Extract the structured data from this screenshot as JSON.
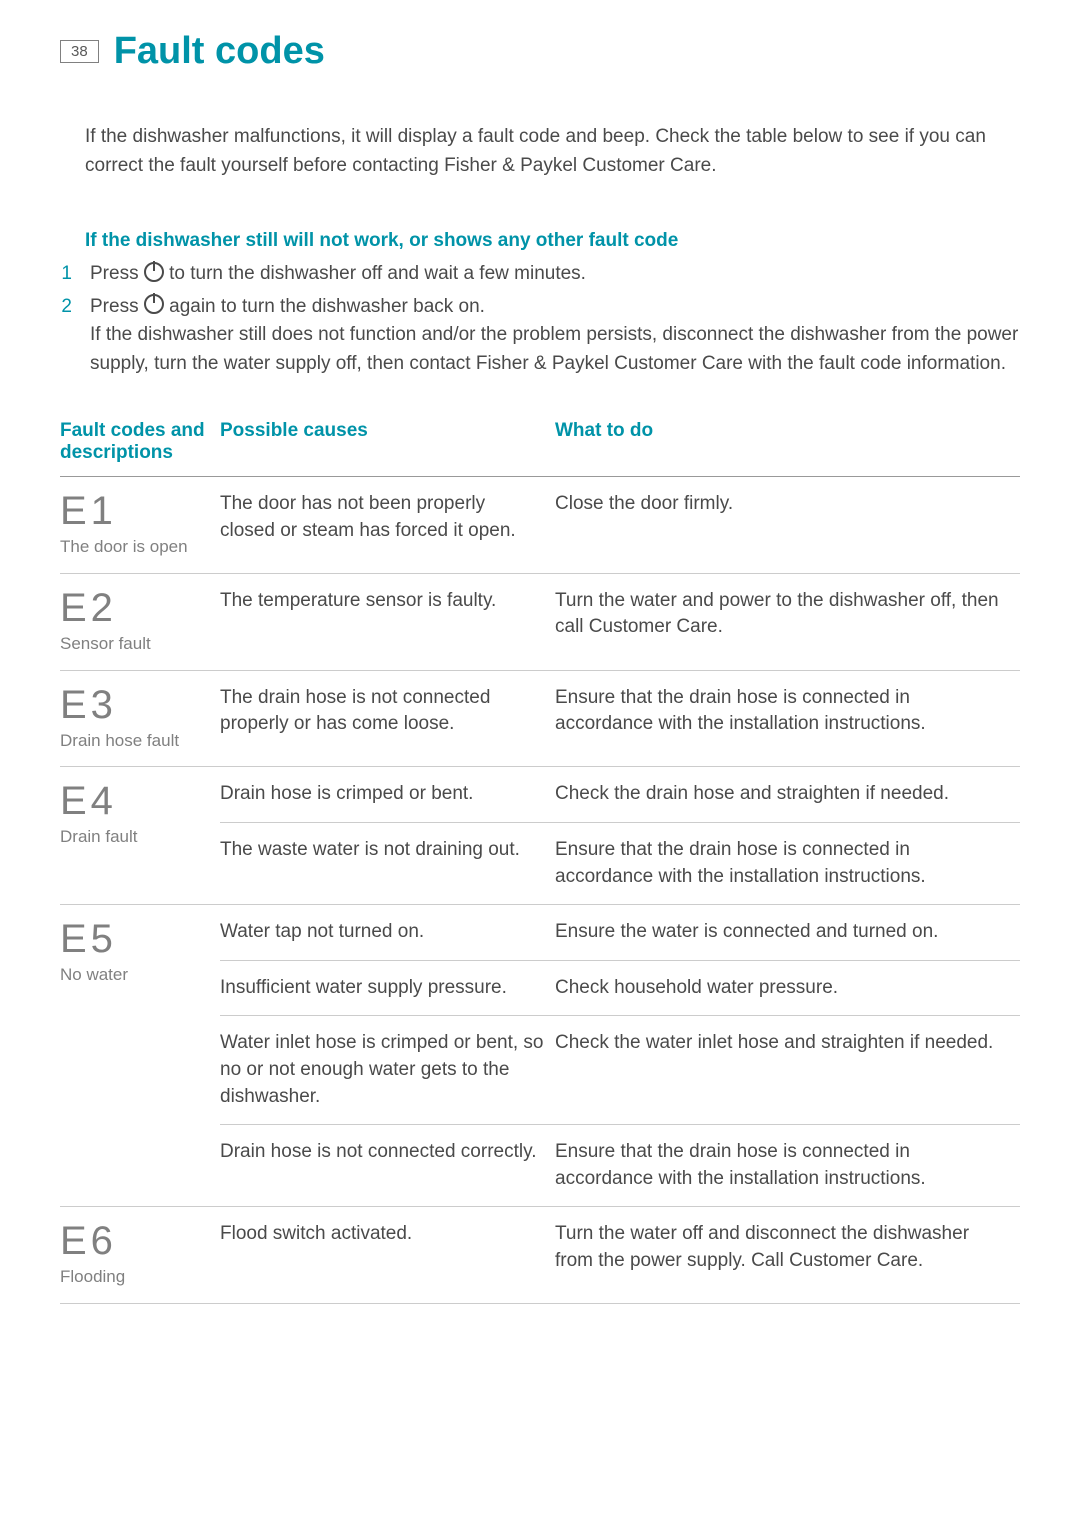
{
  "page_number": "38",
  "page_title": "Fault codes",
  "intro_text": "If the dishwasher malfunctions, it will display a fault code and beep. Check the table below to see if you can correct the fault yourself before contacting Fisher & Paykel Customer Care.",
  "sub_heading": "If the dishwasher still will not work, or shows any other fault code",
  "steps": [
    {
      "num": "1",
      "before": "Press ",
      "after": " to turn the dishwasher off and wait a few minutes."
    },
    {
      "num": "2",
      "before": "Press ",
      "after": " again to turn the dishwasher back on.",
      "extra": "If the dishwasher still does not function and/or the problem persists, disconnect the dishwasher from the power supply, turn the water supply off, then contact Fisher & Paykel Customer Care with the fault code information."
    }
  ],
  "table_headers": {
    "col1": "Fault codes and descriptions",
    "col2": "Possible causes",
    "col3": "What to do"
  },
  "faults": [
    {
      "code": "E1",
      "desc": "The door is open",
      "rows": [
        {
          "cause": "The door has not been properly closed or steam has forced it open.",
          "action": "Close the door firmly."
        }
      ]
    },
    {
      "code": "E2",
      "desc": "Sensor fault",
      "rows": [
        {
          "cause": "The temperature sensor is faulty.",
          "action": "Turn the water and power to the dishwasher off, then call Customer Care."
        }
      ]
    },
    {
      "code": "E3",
      "desc": "Drain hose fault",
      "rows": [
        {
          "cause": "The drain hose is not connected properly or has come loose.",
          "action": "Ensure that the drain hose is connected in accordance with the installation instructions."
        }
      ]
    },
    {
      "code": "E4",
      "desc": "Drain fault",
      "rows": [
        {
          "cause": "Drain hose is crimped or bent.",
          "action": "Check the drain hose and straighten if needed."
        },
        {
          "cause": "The waste water is not draining out.",
          "action": "Ensure that the drain hose is connected in accordance with the installation instructions."
        }
      ]
    },
    {
      "code": "E5",
      "desc": "No water",
      "rows": [
        {
          "cause": "Water tap not turned on.",
          "action": "Ensure the water is connected and turned on."
        },
        {
          "cause": "Insufficient water supply pressure.",
          "action": "Check household water pressure."
        },
        {
          "cause": "Water inlet hose is crimped or bent, so no or not enough water gets to the dishwasher.",
          "action": "Check the water inlet hose and straighten if needed."
        },
        {
          "cause": "Drain hose is not connected correctly.",
          "action": "Ensure that the drain hose is connected in accordance with the installation instructions."
        }
      ]
    },
    {
      "code": "E6",
      "desc": "Flooding",
      "rows": [
        {
          "cause": "Flood switch activated.",
          "action": "Turn the water off and disconnect the dishwasher from the power supply. Call Customer Care."
        }
      ]
    }
  ],
  "colors": {
    "accent": "#0093a8",
    "body_text": "#4a4a4a",
    "muted_text": "#808080",
    "border_heavy": "#999999",
    "border_light": "#cccccc",
    "background": "#ffffff"
  }
}
